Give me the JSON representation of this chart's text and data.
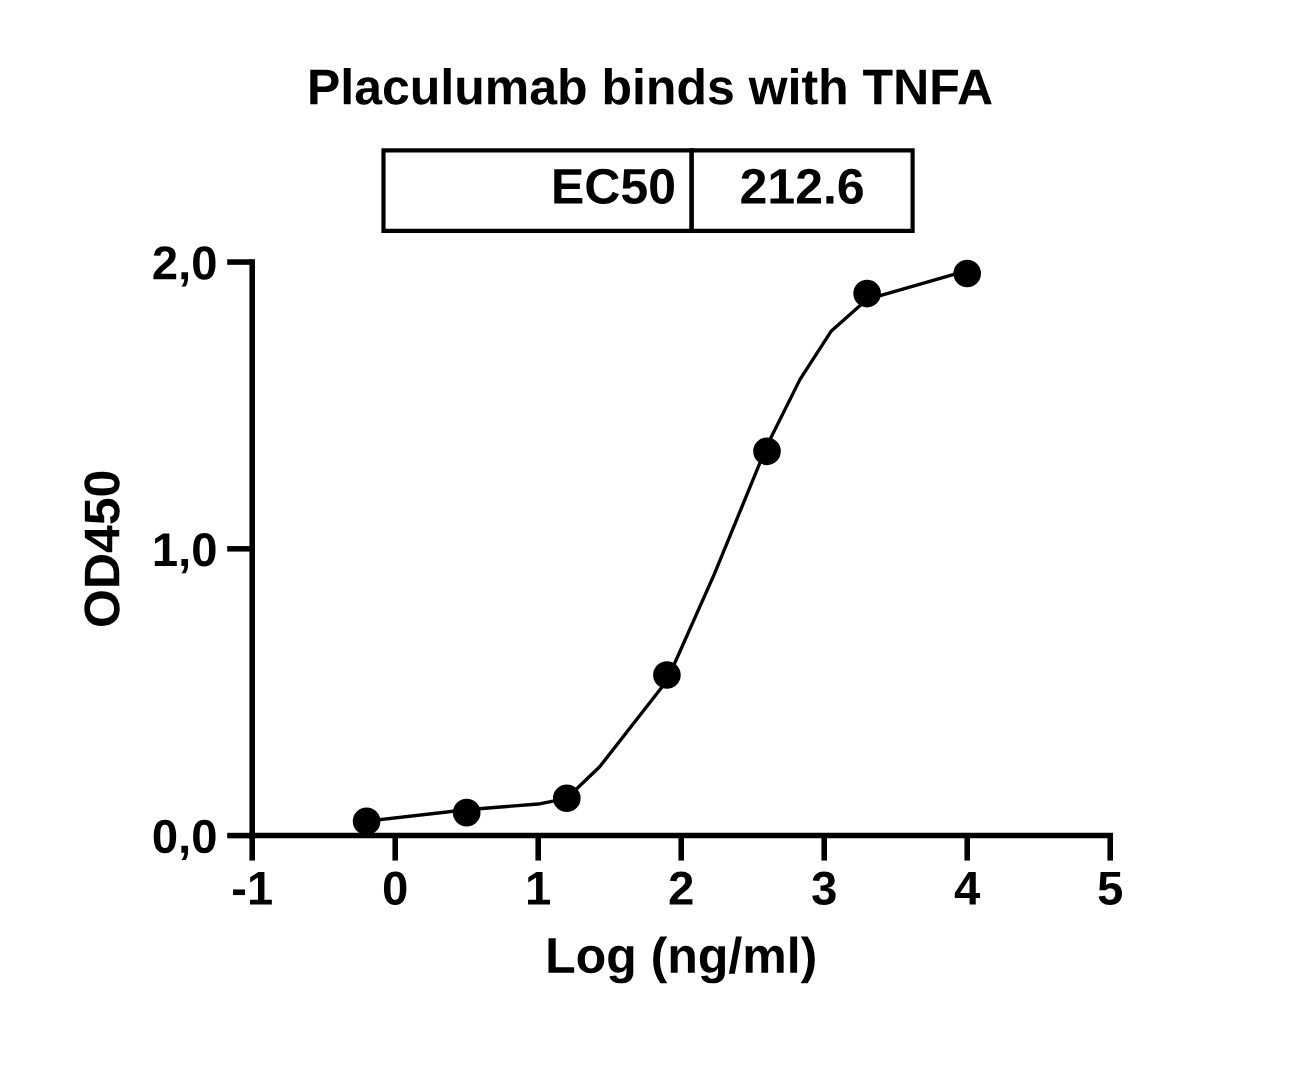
{
  "chart_data": {
    "type": "scatter",
    "title": "Placulumab binds with TNFA",
    "xlabel": "Log (ng/ml)",
    "ylabel": "OD450",
    "annotations": [
      "EC50",
      "212.6"
    ],
    "series": [
      {
        "color": "#000000",
        "marker": "circle",
        "x": [
          -0.2,
          0.5,
          1.2,
          1.9,
          2.6,
          3.3,
          4.0
        ],
        "values": [
          0.05,
          0.08,
          0.13,
          0.56,
          1.34,
          1.89,
          1.96
        ]
      },
      {
        "type": "line",
        "color": "#000000",
        "marker": "none",
        "line_style": "solid",
        "x": [
          -0.2,
          0.5,
          1.0,
          1.2,
          1.43,
          1.9,
          2.23,
          2.37,
          2.6,
          2.83,
          3.05,
          3.3,
          4.0
        ],
        "values": [
          0.05,
          0.09,
          0.11,
          0.13,
          0.24,
          0.54,
          0.91,
          1.08,
          1.36,
          1.59,
          1.76,
          1.87,
          1.97
        ]
      }
    ],
    "xlim": [
      -1,
      5
    ],
    "xticks": [
      -1,
      0,
      1,
      2,
      3,
      4,
      5
    ],
    "ylim": [
      0,
      2
    ],
    "yticks": [
      {
        "value": 0,
        "label": "0,0"
      },
      {
        "value": 1,
        "label": "1,0"
      },
      {
        "value": 2,
        "label": "2,0"
      }
    ],
    "grid": false,
    "legend": false
  }
}
